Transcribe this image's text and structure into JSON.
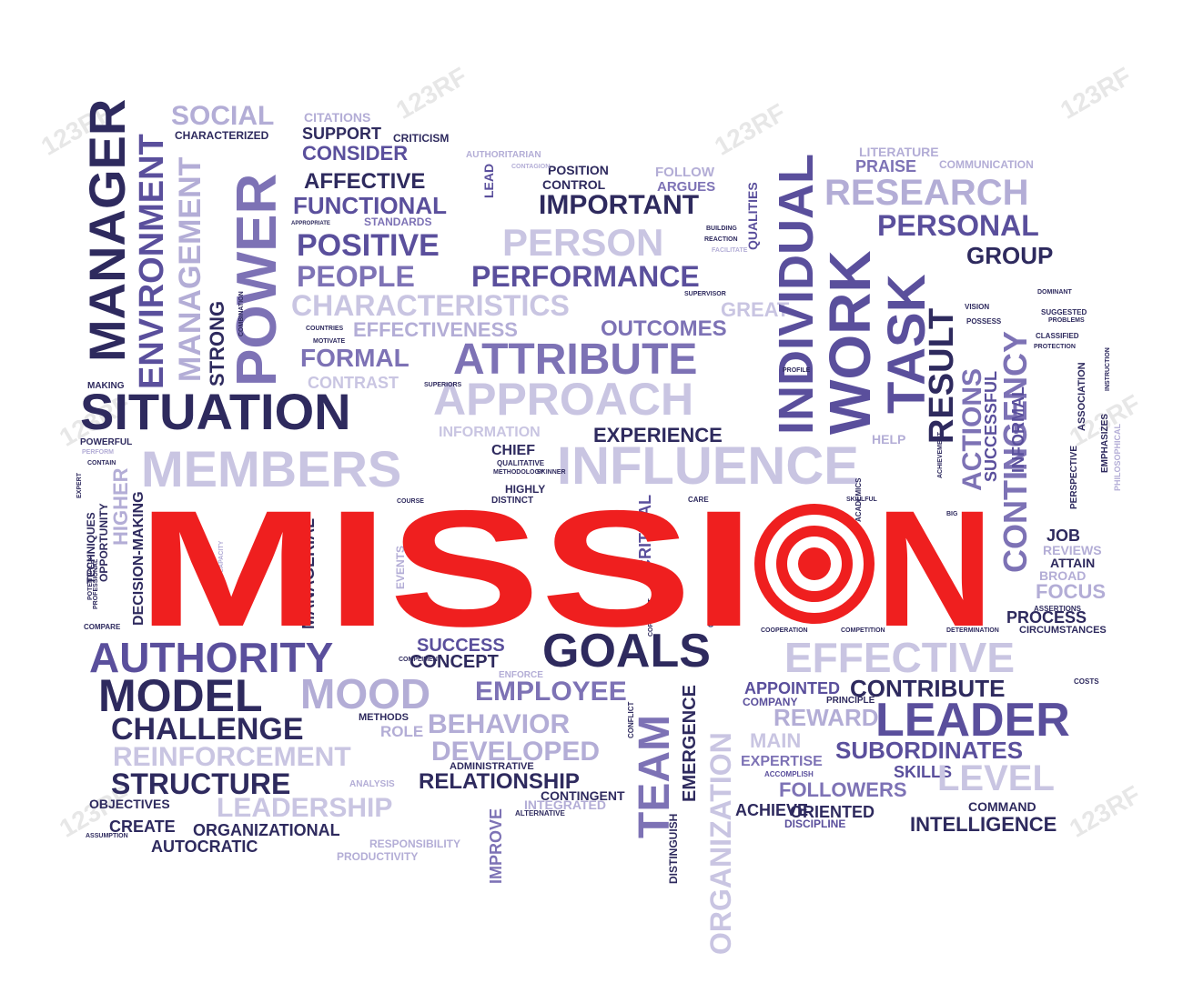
{
  "headline": {
    "text": "MISSION",
    "color": "#ef1f1f",
    "target_colors": [
      "#ef1f1f",
      "#ffffff"
    ]
  },
  "watermark": {
    "text": "123RF"
  },
  "palette": {
    "dark": "#2e2a5e",
    "mid": "#5a4f9c",
    "medium": "#7d72b5",
    "light": "#b3add6",
    "pale": "#c9c5e2"
  },
  "words": [
    "MANAGER",
    "ENVIRONMENT",
    "MANAGEMENT",
    "POWER",
    "SOCIAL",
    "CHARACTERIZED",
    "CITATIONS",
    "SUPPORT",
    "CRITICISM",
    "CONSIDER",
    "AUTHORITARIAN",
    "AFFECTIVE",
    "LEAD",
    "POSITION",
    "CONTROL",
    "FOLLOW",
    "ARGUES",
    "FUNCTIONAL",
    "IMPORTANT",
    "STANDARDS",
    "APPROPRIATE",
    "POSITIVE",
    "PERSON",
    "PEOPLE",
    "PERFORMANCE",
    "CHARACTERISTICS",
    "GREAT",
    "SUPERVISOR",
    "EFFECTIVENESS",
    "OUTCOMES",
    "FORMAL",
    "ATTRIBUTE",
    "CONTRAST",
    "APPROACH",
    "STRONG",
    "SITUATION",
    "INFORMATION",
    "EXPERIENCE",
    "MEMBERS",
    "INFLUENCE",
    "CHIEF",
    "QUALITATIVE",
    "HIGHLY",
    "DISTINCT",
    "INDIVIDUAL",
    "QUALITIES",
    "WORK",
    "TASK",
    "RESULT",
    "ACTIONS",
    "CONTINGENCY",
    "SUCCESSFUL",
    "INFORMAL",
    "RESEARCH",
    "PERSONAL",
    "GROUP",
    "LITERATURE",
    "PRAISE",
    "COMMUNICATION",
    "JOB",
    "REVIEWS",
    "ATTAIN",
    "BROAD",
    "FOCUS",
    "PROCESS",
    "CIRCUMSTANCES",
    "HELP",
    "MAKING",
    "POWERFUL",
    "HIGHER",
    "DECISION-MAKING",
    "OPPORTUNITY",
    "TECHNIQUES",
    "COMPARE",
    "AUTHORITY",
    "MODEL",
    "MOOD",
    "CHALLENGE",
    "REINFORCEMENT",
    "STRUCTURE",
    "LEADERSHIP",
    "OBJECTIVES",
    "CREATE",
    "ORGANIZATIONAL",
    "AUTOCRATIC",
    "ASSUMPTION",
    "SUCCESS",
    "CONCEPT",
    "GOALS",
    "EMPLOYEE",
    "BEHAVIOR",
    "DEVELOPED",
    "RELATIONSHIP",
    "METHODS",
    "ROLE",
    "ADMINISTRATIVE",
    "CONTINGENT",
    "INTEGRATED",
    "ALTERNATIVE",
    "RESPONSIBILITY",
    "PRODUCTIVITY",
    "ANALYSIS",
    "IMPROVE",
    "TEAM",
    "DISTINGUISH",
    "EMERGENCE",
    "ORGANIZATION",
    "EFFECTIVE",
    "APPOINTED",
    "CONTRIBUTE",
    "COMPANY",
    "PRINCIPLE",
    "REWARD",
    "LEADER",
    "MAIN",
    "EXPERTISE",
    "SUBORDINATES",
    "SKILLS",
    "ACCOMPLISH",
    "LEVEL",
    "FOLLOWERS",
    "ACHIEVE",
    "ORIENTED",
    "COMMAND",
    "DISCIPLINE",
    "INTELLIGENCE",
    "MANAGERIAL",
    "CRITICAL",
    "EVENTS",
    "ENFORCE",
    "COSTS",
    "SUGGESTED",
    "PROBLEMS",
    "CLASSIFIED",
    "PROTECTION",
    "DOMINANT",
    "VISION",
    "POSSESS",
    "ASSOCIATION",
    "PERSPECTIVE",
    "EMPHASIZES",
    "PHILOSOPHICAL",
    "ASSERTIONS",
    "CONFLICT",
    "CARE",
    "ACADEMICS",
    "COMBINATION",
    "COUNTRIES",
    "MOTIVATE",
    "POTENTIALLY",
    "PROFESSIONAL",
    "EXPERT",
    "PERFORM",
    "BUILDING",
    "REACTION",
    "FACILITATE",
    "CONTAGION",
    "CAPACITY",
    "COURSE",
    "PROFILE",
    "CHANGEABLE",
    "COMPLIMENT",
    "COOPERATION",
    "COMPETITION",
    "DETERMINATION",
    "COPYRIGHT",
    "BIG",
    "SKILLFUL",
    "ACHIEVEMENT",
    "INSTRUCTION",
    "CONTAIN",
    "SUPERIORS",
    "METHODOLOGY",
    "SKINNER"
  ]
}
